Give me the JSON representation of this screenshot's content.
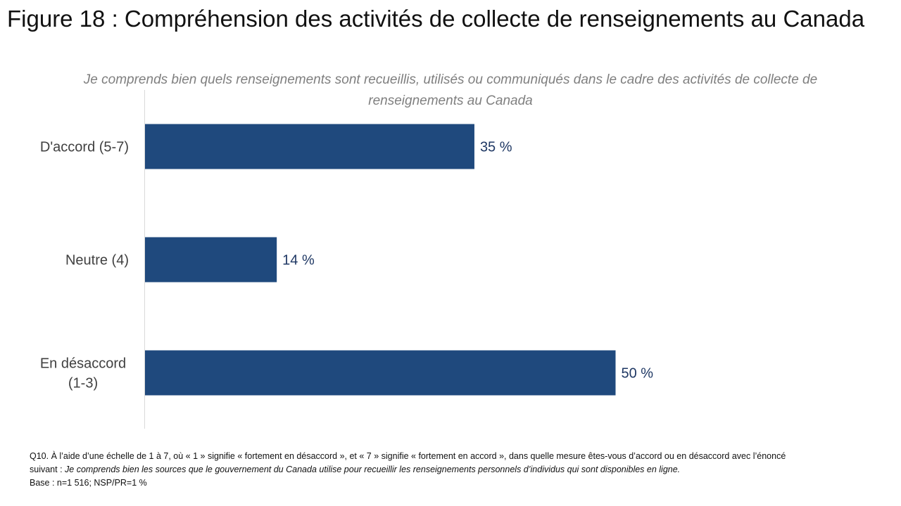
{
  "title": "Figure 18 : Compréhension des activités de collecte de renseignements au Canada",
  "colors": {
    "bar": "#1f497d",
    "axis": "#d9d9d9",
    "value_label": "#1f3864",
    "category_label": "#404040"
  },
  "chart_data": {
    "type": "bar",
    "orientation": "horizontal",
    "title": "Je comprends bien quels renseignements sont recueillis, utilisés ou communiqués dans le cadre des activités de collecte de renseignements au Canada",
    "categories": [
      "D'accord (5-7)",
      "Neutre (4)",
      "En désaccord (1-3)"
    ],
    "category_lines": [
      [
        "D'accord (5-7)"
      ],
      [
        "Neutre (4)"
      ],
      [
        "En désaccord",
        "(1-3)"
      ]
    ],
    "values": [
      35,
      14,
      50
    ],
    "value_labels": [
      "35 %",
      "14 %",
      "50 %"
    ],
    "xlim": [
      0,
      100
    ],
    "grid": false,
    "legend": "none"
  },
  "footnote": {
    "question_prefix": "Q10.  À l’aide d’une échelle de 1 à 7, où « 1 » signifie « fortement en désaccord », et « 7 » signifie « fortement en accord », dans quelle mesure êtes-vous d’accord ou en désaccord avec l’énoncé suivant : ",
    "question_statement": "Je comprends bien les sources que le gouvernement du Canada utilise pour recueillir les renseignements personnels d’individus qui sont disponibles en ligne.",
    "base": "Base : n=1 516; NSP/PR=1 %"
  }
}
